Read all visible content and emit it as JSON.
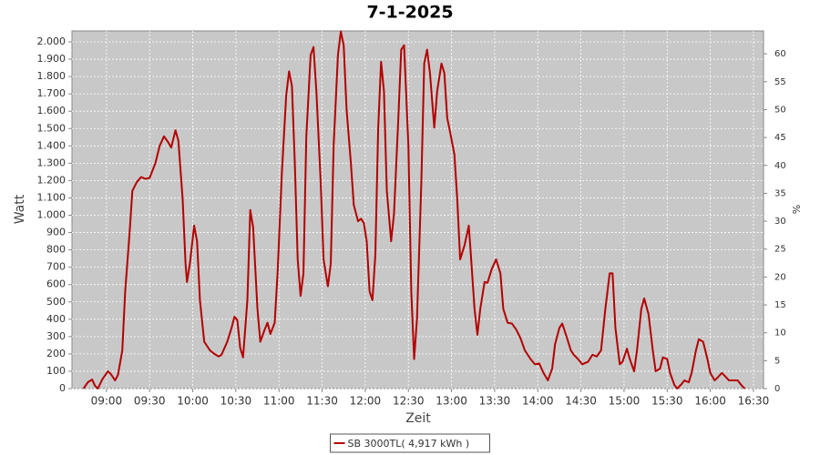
{
  "chart_data": {
    "type": "line",
    "title": "7-1-2025",
    "xlabel": "Zeit",
    "ylabel": "Watt",
    "y2label": "%",
    "x": [
      "08:44",
      "08:47",
      "08:50",
      "08:52",
      "08:54",
      "08:57",
      "09:01",
      "09:03",
      "09:06",
      "09:08",
      "09:11",
      "09:13",
      "09:16",
      "09:18",
      "09:21",
      "09:24",
      "09:27",
      "09:30",
      "09:34",
      "09:37",
      "09:40",
      "09:43",
      "09:45",
      "09:48",
      "09:50",
      "09:53",
      "09:55",
      "09:56",
      "09:58",
      "10:01",
      "10:03",
      "10:05",
      "10:08",
      "10:12",
      "10:15",
      "10:18",
      "10:20",
      "10:24",
      "10:27",
      "10:29",
      "10:31",
      "10:33",
      "10:35",
      "10:38",
      "10:40",
      "10:42",
      "10:45",
      "10:47",
      "10:50",
      "10:52",
      "10:54",
      "10:57",
      "10:59",
      "11:02",
      "11:05",
      "11:07",
      "11:09",
      "11:11",
      "11:13",
      "11:15",
      "11:17",
      "11:19",
      "11:22",
      "11:24",
      "11:26",
      "11:29",
      "11:31",
      "11:34",
      "11:36",
      "11:38",
      "11:41",
      "11:43",
      "11:45",
      "11:47",
      "11:50",
      "11:52",
      "11:55",
      "11:57",
      "11:59",
      "12:01",
      "12:03",
      "12:05",
      "12:07",
      "12:09",
      "12:11",
      "12:13",
      "12:15",
      "12:18",
      "12:20",
      "12:23",
      "12:25",
      "12:27",
      "12:30",
      "12:32",
      "12:34",
      "12:36",
      "12:39",
      "12:41",
      "12:43",
      "12:45",
      "12:48",
      "12:50",
      "12:53",
      "12:55",
      "12:57",
      "12:59",
      "13:02",
      "13:04",
      "13:06",
      "13:09",
      "13:12",
      "13:13",
      "13:16",
      "13:18",
      "13:20",
      "13:23",
      "13:25",
      "13:28",
      "13:31",
      "13:34",
      "13:36",
      "13:39",
      "13:42",
      "13:45",
      "13:48",
      "13:51",
      "13:55",
      "13:58",
      "14:01",
      "14:04",
      "14:07",
      "14:10",
      "14:12",
      "14:15",
      "14:17",
      "14:20",
      "14:23",
      "14:25",
      "14:28",
      "14:31",
      "14:35",
      "14:38",
      "14:41",
      "14:44",
      "14:47",
      "14:50",
      "14:52",
      "14:54",
      "14:57",
      "14:59",
      "15:02",
      "15:04",
      "15:07",
      "15:09",
      "15:12",
      "15:14",
      "15:17",
      "15:20",
      "15:22",
      "15:25",
      "15:27",
      "15:30",
      "15:32",
      "15:35",
      "15:37",
      "15:40",
      "15:42",
      "15:45",
      "15:47",
      "15:50",
      "15:52",
      "15:55",
      "15:58",
      "16:00",
      "16:03",
      "16:05",
      "16:08",
      "16:10",
      "16:13",
      "16:16",
      "16:19",
      "16:22",
      "16:24"
    ],
    "series": [
      {
        "name": "SB 3000TL( 4,917 kWh )",
        "color": "#b40000",
        "values": [
          0,
          36,
          52,
          16,
          0,
          52,
          100,
          84,
          47,
          79,
          220,
          560,
          890,
          1140,
          1190,
          1220,
          1210,
          1215,
          1300,
          1400,
          1455,
          1420,
          1390,
          1490,
          1430,
          1090,
          720,
          615,
          720,
          940,
          850,
          510,
          270,
          220,
          200,
          185,
          195,
          270,
          350,
          415,
          395,
          235,
          180,
          510,
          1030,
          930,
          460,
          270,
          340,
          380,
          315,
          380,
          665,
          1245,
          1690,
          1830,
          1745,
          1300,
          745,
          535,
          665,
          1455,
          1925,
          1970,
          1715,
          1190,
          745,
          590,
          720,
          1400,
          1925,
          2060,
          1980,
          1610,
          1300,
          1060,
          965,
          980,
          955,
          850,
          560,
          510,
          770,
          1505,
          1885,
          1715,
          1140,
          850,
          1010,
          1560,
          1955,
          1980,
          1400,
          560,
          170,
          405,
          1190,
          1875,
          1955,
          1820,
          1505,
          1715,
          1875,
          1820,
          1560,
          1480,
          1350,
          1090,
          745,
          825,
          940,
          825,
          460,
          310,
          460,
          615,
          610,
          690,
          745,
          665,
          460,
          380,
          375,
          340,
          290,
          220,
          170,
          140,
          145,
          90,
          47,
          115,
          255,
          350,
          375,
          300,
          220,
          195,
          170,
          140,
          155,
          195,
          185,
          220,
          460,
          665,
          665,
          350,
          140,
          155,
          230,
          170,
          100,
          220,
          460,
          520,
          430,
          220,
          100,
          115,
          180,
          170,
          90,
          21,
          0,
          26,
          47,
          36,
          90,
          220,
          285,
          270,
          170,
          90,
          47,
          63,
          90,
          74,
          47,
          47,
          47,
          16,
          0
        ]
      }
    ],
    "xlim": [
      "08:36",
      "16:37"
    ],
    "xticks": [
      "09:00",
      "09:30",
      "10:00",
      "10:30",
      "11:00",
      "11:30",
      "12:00",
      "12:30",
      "13:00",
      "13:30",
      "14:00",
      "14:30",
      "15:00",
      "15:30",
      "16:00",
      "16:30"
    ],
    "ylim": [
      0,
      2063
    ],
    "yticks": [
      0,
      100,
      200,
      300,
      400,
      500,
      600,
      700,
      800,
      900,
      {
        "value": 1000,
        "label": "1.000"
      },
      {
        "value": 1100,
        "label": "1.100"
      },
      {
        "value": 1200,
        "label": "1.200"
      },
      {
        "value": 1300,
        "label": "1.300"
      },
      {
        "value": 1400,
        "label": "1.400"
      },
      {
        "value": 1500,
        "label": "1.500"
      },
      {
        "value": 1600,
        "label": "1.600"
      },
      {
        "value": 1700,
        "label": "1.700"
      },
      {
        "value": 1800,
        "label": "1.800"
      },
      {
        "value": 1900,
        "label": "1.900"
      },
      {
        "value": 2000,
        "label": "2.000"
      }
    ],
    "y2lim": [
      0,
      64.1
    ],
    "y2ticks": [
      0,
      5,
      10,
      15,
      20,
      25,
      30,
      35,
      40,
      45,
      50,
      55,
      60
    ],
    "grid": true,
    "legend": "bottom"
  }
}
